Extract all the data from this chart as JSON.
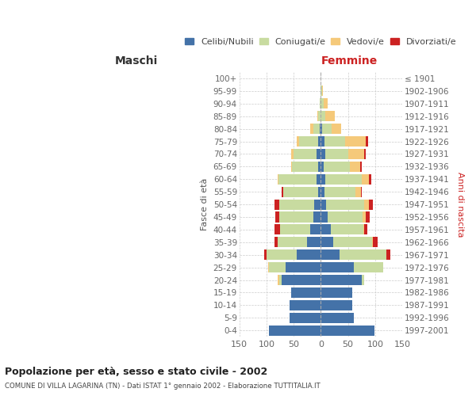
{
  "age_groups": [
    "0-4",
    "5-9",
    "10-14",
    "15-19",
    "20-24",
    "25-29",
    "30-34",
    "35-39",
    "40-44",
    "45-49",
    "50-54",
    "55-59",
    "60-64",
    "65-69",
    "70-74",
    "75-79",
    "80-84",
    "85-89",
    "90-94",
    "95-99",
    "100+"
  ],
  "birth_years": [
    "1997-2001",
    "1992-1996",
    "1987-1991",
    "1982-1986",
    "1977-1981",
    "1972-1976",
    "1967-1971",
    "1962-1966",
    "1957-1961",
    "1952-1956",
    "1947-1951",
    "1942-1946",
    "1937-1941",
    "1932-1936",
    "1927-1931",
    "1922-1926",
    "1917-1921",
    "1912-1916",
    "1907-1911",
    "1902-1906",
    "≤ 1901"
  ],
  "colors": {
    "celibi": "#4472a8",
    "coniugati": "#c8dba0",
    "vedovi": "#f5c97a",
    "divorziati": "#cc2222"
  },
  "maschi": {
    "celibi": [
      95,
      58,
      58,
      55,
      72,
      65,
      45,
      25,
      20,
      14,
      12,
      5,
      8,
      5,
      8,
      5,
      2,
      0,
      0,
      0,
      0
    ],
    "coniugati": [
      0,
      0,
      0,
      0,
      5,
      30,
      55,
      55,
      55,
      62,
      65,
      65,
      70,
      48,
      42,
      35,
      12,
      5,
      2,
      0,
      0
    ],
    "vedovi": [
      0,
      0,
      0,
      0,
      2,
      2,
      0,
      0,
      0,
      0,
      0,
      0,
      2,
      2,
      5,
      5,
      5,
      2,
      0,
      0,
      0
    ],
    "divorziati": [
      0,
      0,
      0,
      0,
      0,
      0,
      5,
      5,
      10,
      8,
      8,
      2,
      0,
      0,
      0,
      0,
      0,
      0,
      0,
      0,
      0
    ]
  },
  "femmine": {
    "celibi": [
      98,
      60,
      58,
      58,
      75,
      60,
      35,
      22,
      18,
      12,
      10,
      6,
      8,
      5,
      8,
      6,
      2,
      0,
      0,
      0,
      0
    ],
    "coniugati": [
      0,
      0,
      0,
      0,
      5,
      55,
      85,
      72,
      60,
      65,
      70,
      58,
      68,
      48,
      42,
      38,
      18,
      8,
      5,
      2,
      0
    ],
    "vedovi": [
      0,
      0,
      0,
      0,
      0,
      0,
      0,
      2,
      2,
      5,
      8,
      10,
      12,
      20,
      30,
      38,
      18,
      18,
      8,
      2,
      0
    ],
    "divorziati": [
      0,
      0,
      0,
      0,
      0,
      0,
      8,
      8,
      5,
      8,
      8,
      2,
      5,
      2,
      2,
      5,
      0,
      0,
      0,
      0,
      0
    ]
  },
  "title_main": "Popolazione per età, sesso e stato civile - 2002",
  "title_sub": "COMUNE DI VILLA LAGARINA (TN) - Dati ISTAT 1° gennaio 2002 - Elaborazione TUTTITALIA.IT",
  "xlabel_left": "Maschi",
  "xlabel_right": "Femmine",
  "ylabel_left": "Fasce di età",
  "ylabel_right": "Anni di nascita",
  "xlim": 150,
  "legend_labels": [
    "Celibi/Nubili",
    "Coniugati/e",
    "Vedovi/e",
    "Divorziati/e"
  ],
  "bg_color": "#ffffff",
  "grid_color": "#cccccc"
}
